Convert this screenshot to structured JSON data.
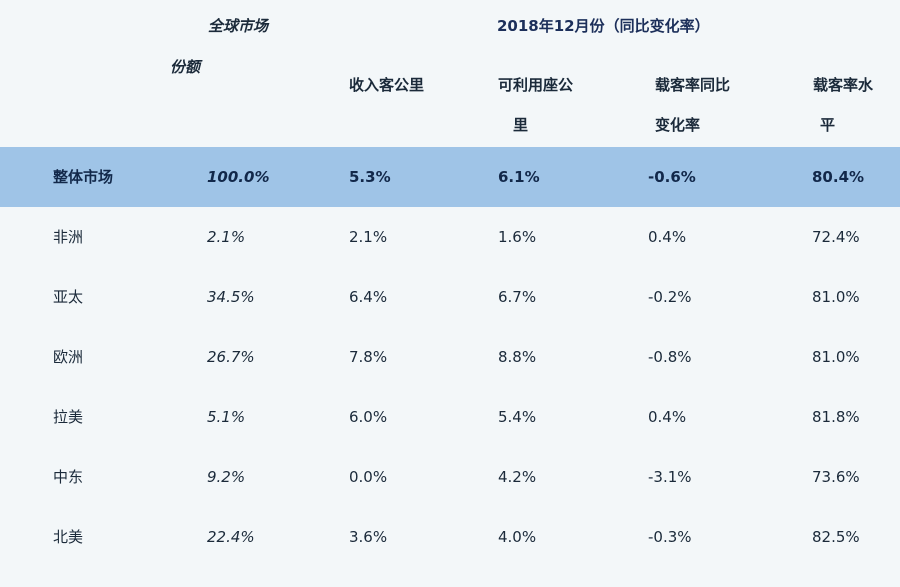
{
  "chart_data": {
    "type": "table",
    "title": "2018年12月份（同比变化率）",
    "header": {
      "share_line1": "全球市场",
      "share_line2": "份额",
      "col3": "收入客公里",
      "col4_line1": "可利用座公",
      "col4_line2": "里",
      "col5_line1": "载客率同比",
      "col5_line2": "变化率",
      "col6_line1": "载客率水",
      "col6_line2": "平"
    },
    "columns": [
      "全球市场份额",
      "收入客公里",
      "可利用座公里",
      "载客率同比变化率",
      "载客率水平"
    ],
    "rows": [
      {
        "region": "整体市场",
        "share": "100.0%",
        "rpk": "5.3%",
        "ask": "6.1%",
        "plf_change": "-0.6%",
        "plf": "80.4%",
        "highlight": true
      },
      {
        "region": "非洲",
        "share": "2.1%",
        "rpk": "2.1%",
        "ask": "1.6%",
        "plf_change": "0.4%",
        "plf": "72.4%"
      },
      {
        "region": "亚太",
        "share": "34.5%",
        "rpk": "6.4%",
        "ask": "6.7%",
        "plf_change": "-0.2%",
        "plf": "81.0%"
      },
      {
        "region": "欧洲",
        "share": "26.7%",
        "rpk": "7.8%",
        "ask": "8.8%",
        "plf_change": "-0.8%",
        "plf": "81.0%"
      },
      {
        "region": "拉美",
        "share": "5.1%",
        "rpk": "6.0%",
        "ask": "5.4%",
        "plf_change": "0.4%",
        "plf": "81.8%"
      },
      {
        "region": "中东",
        "share": "9.2%",
        "rpk": "0.0%",
        "ask": "4.2%",
        "plf_change": "-3.1%",
        "plf": "73.6%"
      },
      {
        "region": "北美",
        "share": "22.4%",
        "rpk": "3.6%",
        "ask": "4.0%",
        "plf_change": "-0.3%",
        "plf": "82.5%"
      }
    ]
  }
}
